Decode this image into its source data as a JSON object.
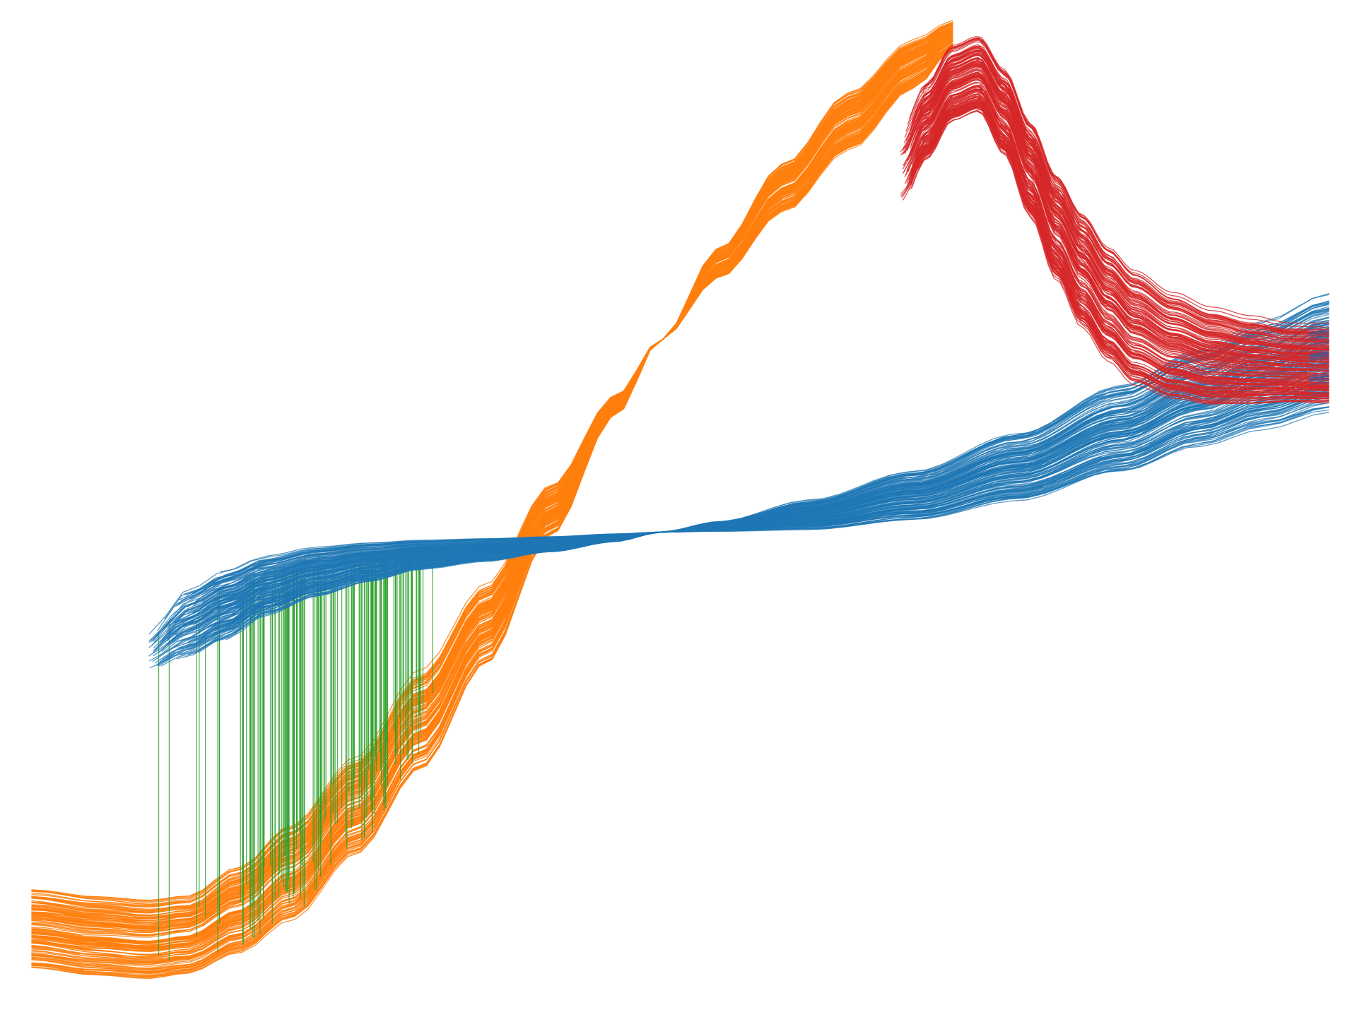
{
  "chart_data": {
    "type": "line",
    "title": "",
    "xlabel": "",
    "ylabel": "",
    "axes_visible": false,
    "grid": false,
    "legend": "none",
    "xlim": [
      0,
      100
    ],
    "ylim": [
      0,
      100
    ],
    "samples_per_bundle": 150,
    "series": [
      {
        "color": "#ff7f0e",
        "opacity": 0.85,
        "description_ref": "bundle-orange",
        "x": [
          0,
          5,
          9,
          12,
          16,
          20,
          25,
          30,
          35,
          40,
          45,
          48.5,
          53,
          58,
          63,
          68,
          71
        ],
        "y_mid": [
          6,
          5.2,
          4.8,
          5.3,
          8,
          12,
          19,
          28,
          38,
          50,
          61,
          68,
          76,
          84,
          91,
          97,
          100
        ],
        "y_spread": [
          4,
          4,
          4,
          4,
          4.5,
          5,
          5,
          5,
          4,
          2.5,
          1,
          0,
          1.5,
          2.5,
          3,
          2.5,
          1.5
        ]
      },
      {
        "color": "#1f77b4",
        "opacity": 0.75,
        "description_ref": "bundle-blue",
        "x": [
          9,
          12,
          15,
          18,
          22,
          26,
          30,
          35,
          40,
          45,
          48.5,
          53,
          60,
          68,
          76,
          84,
          90,
          95,
          100
        ],
        "y_mid": [
          35,
          38,
          40,
          42,
          43.5,
          44.5,
          45.3,
          45.8,
          46.4,
          47.1,
          47.7,
          48.3,
          49.5,
          51.5,
          54.5,
          58.5,
          61.8,
          64.2,
          66.5
        ],
        "y_spread": [
          2,
          3.5,
          3.5,
          3,
          2.5,
          2,
          1.5,
          1.2,
          0.8,
          0.4,
          0,
          0.5,
          1.5,
          2.5,
          3.5,
          4.5,
          5,
          5.5,
          6
        ]
      },
      {
        "color": "#2ca02c",
        "opacity": 0.8,
        "description_ref": "vlines-green",
        "kind": "vertical-lines",
        "x_range": [
          9.5,
          31.5
        ],
        "x_dense_range": [
          16,
          30
        ]
      },
      {
        "color": "#d62728",
        "opacity": 0.8,
        "description_ref": "bundle-red",
        "x": [
          67,
          69,
          71,
          73,
          75,
          77,
          79,
          81,
          83,
          85,
          88,
          91,
          94,
          97,
          100
        ],
        "y_mid": [
          86,
          91,
          95,
          96,
          92,
          86,
          80,
          75.5,
          72,
          69.5,
          67.5,
          66.3,
          65.8,
          65.5,
          65.4
        ],
        "y_spread": [
          4,
          4,
          4,
          4,
          4.5,
          5,
          5.5,
          6,
          6,
          6,
          5.5,
          5,
          4.5,
          4,
          4
        ]
      }
    ]
  }
}
